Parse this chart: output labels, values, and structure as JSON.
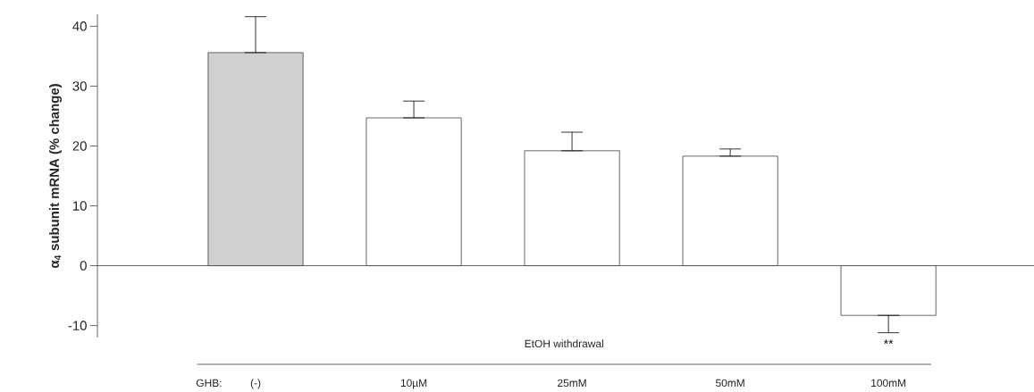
{
  "chart_data": {
    "type": "bar",
    "ylabel": "α$_{4}$ subunit mRNA (% change)",
    "categories": [
      "(-)",
      "10µM",
      "25mM",
      "50mM",
      "100mM"
    ],
    "values": [
      35.6,
      24.7,
      19.2,
      18.3,
      -8.3
    ],
    "errors": [
      [
        35.6,
        41.6
      ],
      [
        24.7,
        27.5
      ],
      [
        19.2,
        22.3
      ],
      [
        18.3,
        19.5
      ],
      [
        -11.2,
        -8.3
      ]
    ],
    "colors": [
      "#d0d0d0",
      "#ffffff",
      "#ffffff",
      "#ffffff",
      "#ffffff"
    ],
    "ylim": [
      -12,
      42
    ],
    "yticks": [
      -10,
      0,
      10,
      20,
      30,
      40
    ],
    "annotations": [
      "GHB:",
      "EtOH withdrawal",
      {
        "text": "**",
        "x": "100mM",
        "y": -11.2
      }
    ]
  }
}
